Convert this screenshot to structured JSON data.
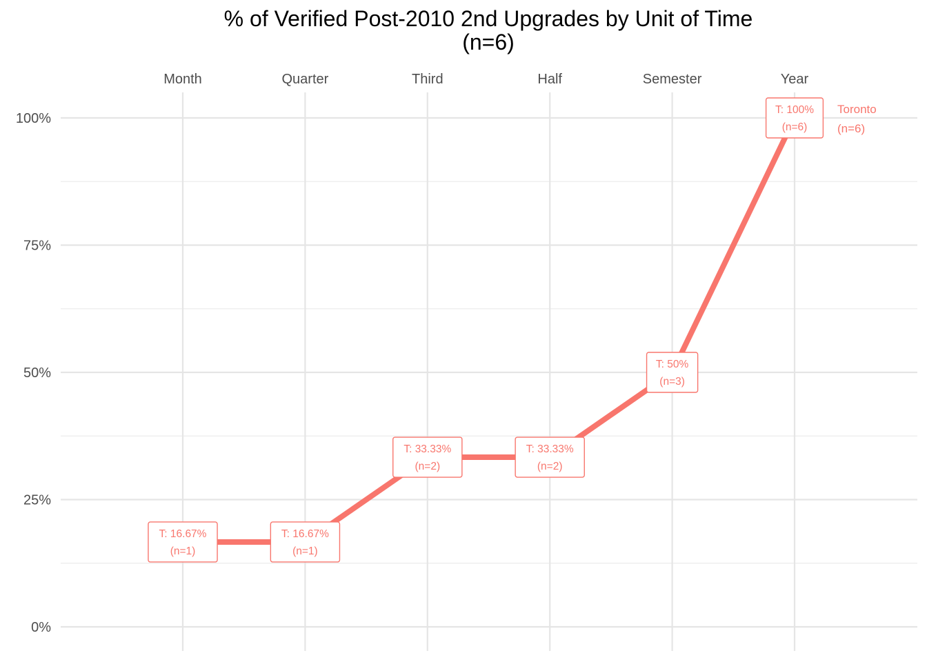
{
  "chart_data": {
    "type": "line",
    "title": "% of Verified Post-2010 2nd Upgrades by Unit of Time",
    "subtitle": "(n=6)",
    "xlabel": "",
    "ylabel": "",
    "x_axis_position": "top",
    "categories": [
      "Month",
      "Quarter",
      "Third",
      "Half",
      "Semester",
      "Year"
    ],
    "ylim": [
      0,
      100
    ],
    "y_ticks": [
      0,
      25,
      50,
      75,
      100
    ],
    "y_tick_labels": [
      "0%",
      "25%",
      "50%",
      "75%",
      "100%"
    ],
    "grid": true,
    "series": [
      {
        "name": "Toronto",
        "end_label": [
          "Toronto",
          "(n=6)"
        ],
        "color": "#F8766D",
        "values": [
          16.67,
          16.67,
          33.33,
          33.33,
          50,
          100
        ],
        "data_labels": [
          [
            "T: 16.67%",
            "(n=1)"
          ],
          [
            "T: 16.67%",
            "(n=1)"
          ],
          [
            "T: 33.33%",
            "(n=2)"
          ],
          [
            "T: 33.33%",
            "(n=2)"
          ],
          [
            "T: 50%",
            "(n=3)"
          ],
          [
            "T: 100%",
            "(n=6)"
          ]
        ]
      }
    ]
  }
}
